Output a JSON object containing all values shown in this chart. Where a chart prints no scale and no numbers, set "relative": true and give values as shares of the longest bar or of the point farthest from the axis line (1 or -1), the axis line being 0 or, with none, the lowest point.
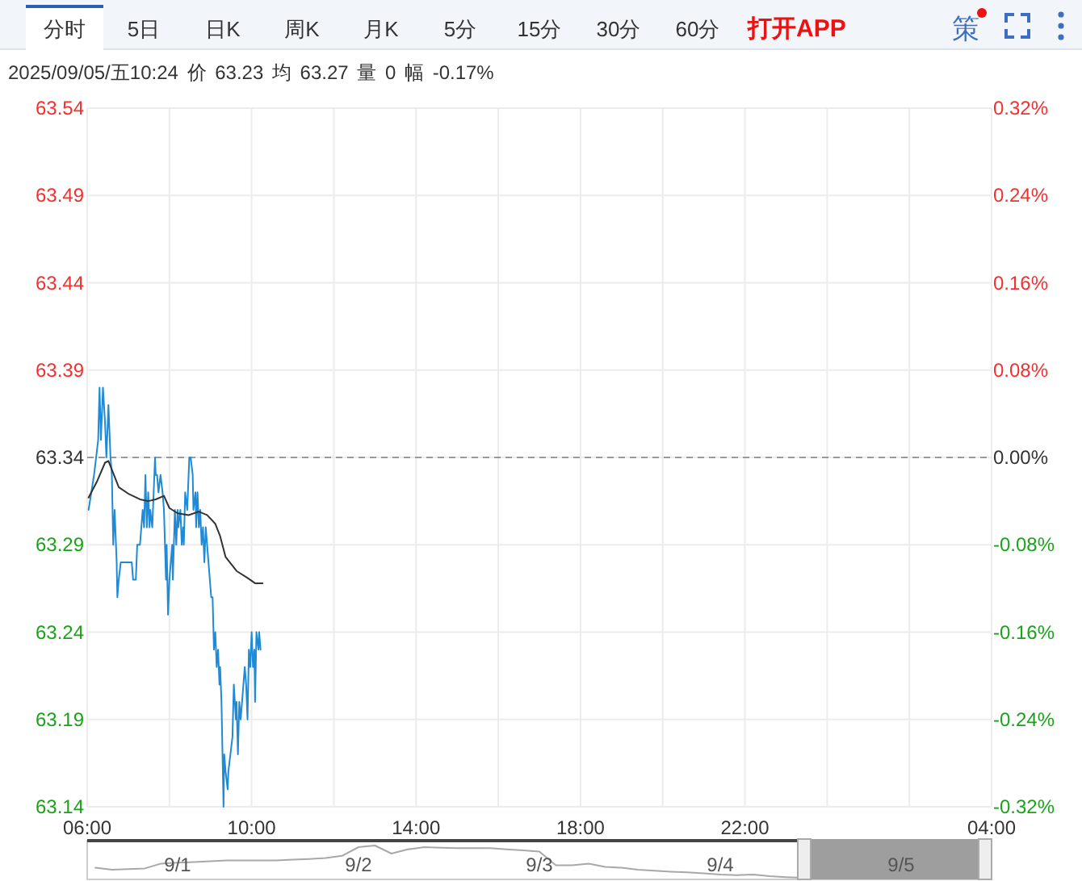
{
  "chart_data": [
    {
      "type": "line",
      "subtitle": "2025/09/05/五10:24 价 63.23 均 63.27 量 0 幅 -0.17%",
      "annotations": [
        "分时",
        "5日",
        "日K",
        "周K",
        "月K",
        "5分",
        "15分",
        "30分",
        "60分",
        "打开APP",
        "策"
      ],
      "series": [
        {
          "color": "#1f8ad6",
          "x": [
            "2025-09-05T06:02",
            "2025-09-05T06:06",
            "2025-09-05T06:10",
            "2025-09-05T06:13",
            "2025-09-05T06:16",
            "2025-09-05T06:18",
            "2025-09-05T06:20",
            "2025-09-05T06:23",
            "2025-09-05T06:26",
            "2025-09-05T06:28",
            "2025-09-05T06:31",
            "2025-09-05T06:34",
            "2025-09-05T06:36",
            "2025-09-05T06:38",
            "2025-09-05T06:40",
            "2025-09-05T06:43",
            "2025-09-05T06:44",
            "2025-09-05T06:46",
            "2025-09-05T06:49",
            "2025-09-05T07:05",
            "2025-09-05T07:07",
            "2025-09-05T07:11",
            "2025-09-05T07:13",
            "2025-09-05T07:17",
            "2025-09-05T07:19",
            "2025-09-05T07:21",
            "2025-09-05T07:23",
            "2025-09-05T07:25",
            "2025-09-05T07:27",
            "2025-09-05T07:29",
            "2025-09-05T07:31",
            "2025-09-05T07:32",
            "2025-09-05T07:35",
            "2025-09-05T07:37",
            "2025-09-05T07:39",
            "2025-09-05T07:40",
            "2025-09-05T07:42",
            "2025-09-05T07:44",
            "2025-09-05T07:47",
            "2025-09-05T07:50",
            "2025-09-05T07:52",
            "2025-09-05T07:55",
            "2025-09-05T07:56",
            "2025-09-05T07:58",
            "2025-09-05T08:00",
            "2025-09-05T08:02",
            "2025-09-05T08:04",
            "2025-09-05T08:05",
            "2025-09-05T08:08",
            "2025-09-05T08:10",
            "2025-09-05T08:12",
            "2025-09-05T08:13",
            "2025-09-05T08:16",
            "2025-09-05T08:18",
            "2025-09-05T08:20",
            "2025-09-05T08:21",
            "2025-09-05T08:23",
            "2025-09-05T08:26",
            "2025-09-05T08:28",
            "2025-09-05T08:29",
            "2025-09-05T08:31",
            "2025-09-05T08:34",
            "2025-09-05T08:35",
            "2025-09-05T08:38",
            "2025-09-05T08:39",
            "2025-09-05T08:41",
            "2025-09-05T08:43",
            "2025-09-05T08:45",
            "2025-09-05T08:47",
            "2025-09-05T08:49",
            "2025-09-05T08:51",
            "2025-09-05T08:53",
            "2025-09-05T08:55",
            "2025-09-05T08:57",
            "2025-09-05T08:59",
            "2025-09-05T09:01",
            "2025-09-05T09:03",
            "2025-09-05T09:05",
            "2025-09-05T09:07",
            "2025-09-05T09:09",
            "2025-09-05T09:11",
            "2025-09-05T09:13",
            "2025-09-05T09:14",
            "2025-09-05T09:16",
            "2025-09-05T09:19",
            "2025-09-05T09:20",
            "2025-09-05T09:22",
            "2025-09-05T09:25",
            "2025-09-05T09:26",
            "2025-09-05T09:29",
            "2025-09-05T09:32",
            "2025-09-05T09:34",
            "2025-09-05T09:37",
            "2025-09-05T09:38",
            "2025-09-05T09:40",
            "2025-09-05T09:42",
            "2025-09-05T09:44",
            "2025-09-05T09:46",
            "2025-09-05T09:48",
            "2025-09-05T09:50",
            "2025-09-05T09:52",
            "2025-09-05T09:54",
            "2025-09-05T09:56",
            "2025-09-05T09:58",
            "2025-09-05T10:00",
            "2025-09-05T10:02",
            "2025-09-05T10:04",
            "2025-09-05T10:05",
            "2025-09-05T10:07",
            "2025-09-05T10:10",
            "2025-09-05T10:11",
            "2025-09-05T10:13"
          ],
          "values": [
            63.31,
            63.32,
            63.33,
            63.34,
            63.35,
            63.38,
            63.35,
            63.38,
            63.36,
            63.34,
            63.37,
            63.34,
            63.33,
            63.29,
            63.31,
            63.28,
            63.26,
            63.27,
            63.28,
            63.28,
            63.27,
            63.27,
            63.29,
            63.29,
            63.3,
            63.31,
            63.3,
            63.33,
            63.3,
            63.32,
            63.3,
            63.31,
            63.3,
            63.32,
            63.34,
            63.33,
            63.33,
            63.32,
            63.33,
            63.32,
            63.31,
            63.27,
            63.29,
            63.25,
            63.27,
            63.28,
            63.29,
            63.27,
            63.31,
            63.29,
            63.31,
            63.3,
            63.31,
            63.29,
            63.3,
            63.29,
            63.32,
            63.31,
            63.33,
            63.34,
            63.34,
            63.33,
            63.31,
            63.32,
            63.3,
            63.32,
            63.3,
            63.31,
            63.29,
            63.3,
            63.28,
            63.3,
            63.29,
            63.28,
            63.27,
            63.26,
            63.26,
            63.23,
            63.24,
            63.22,
            63.23,
            63.21,
            63.22,
            63.2,
            63.14,
            63.17,
            63.16,
            63.15,
            63.16,
            63.17,
            63.18,
            63.21,
            63.19,
            63.2,
            63.17,
            63.2,
            63.19,
            63.2,
            63.21,
            63.22,
            63.21,
            63.19,
            63.23,
            63.22,
            63.24,
            63.22,
            63.23,
            63.2,
            63.24,
            63.23,
            63.24,
            63.23
          ]
        },
        {
          "color": "#333333",
          "x": [
            "2025-09-05T06:02",
            "2025-09-05T06:14",
            "2025-09-05T06:26",
            "2025-09-05T06:31",
            "2025-09-05T06:38",
            "2025-09-05T06:46",
            "2025-09-05T07:01",
            "2025-09-05T07:17",
            "2025-09-05T07:29",
            "2025-09-05T07:40",
            "2025-09-05T07:52",
            "2025-09-05T08:00",
            "2025-09-05T08:12",
            "2025-09-05T08:28",
            "2025-09-05T08:43",
            "2025-09-05T08:55",
            "2025-09-05T09:07",
            "2025-09-05T09:14",
            "2025-09-05T09:22",
            "2025-09-05T09:38",
            "2025-09-05T09:54",
            "2025-09-05T10:05",
            "2025-09-05T10:16"
          ],
          "values": [
            63.317,
            63.326,
            63.337,
            63.338,
            63.331,
            63.323,
            63.319,
            63.316,
            63.315,
            63.316,
            63.318,
            63.311,
            63.308,
            63.307,
            63.309,
            63.307,
            63.302,
            63.295,
            63.283,
            63.275,
            63.271,
            63.268,
            63.268
          ]
        }
      ],
      "xlim": [
        "2025-09-05T06:00",
        "2025-09-06T04:00"
      ],
      "xticks": [
        {
          "value": "2025-09-05T06:00",
          "label": "06:00"
        },
        {
          "value": "2025-09-05T08:00",
          "label": null
        },
        {
          "value": "2025-09-05T10:00",
          "label": "10:00"
        },
        {
          "value": "2025-09-05T12:00",
          "label": null
        },
        {
          "value": "2025-09-05T14:00",
          "label": "14:00"
        },
        {
          "value": "2025-09-05T16:00",
          "label": null
        },
        {
          "value": "2025-09-05T18:00",
          "label": "18:00"
        },
        {
          "value": "2025-09-05T20:00",
          "label": null
        },
        {
          "value": "2025-09-05T22:00",
          "label": "22:00"
        },
        {
          "value": "2025-09-06T00:00",
          "label": null
        },
        {
          "value": "2025-09-06T02:00",
          "label": null
        },
        {
          "value": "2025-09-06T04:00",
          "label": "04:00"
        }
      ],
      "ylim": [
        63.14,
        63.54
      ],
      "yticks": [
        63.14,
        63.19,
        63.24,
        63.29,
        63.34,
        63.39,
        63.44,
        63.49,
        63.54
      ],
      "y2lim": [
        -0.32,
        0.32
      ],
      "y2ticks": [
        {
          "value": -0.32,
          "label": "-0.32%"
        },
        {
          "value": -0.24,
          "label": "-0.24%"
        },
        {
          "value": -0.16,
          "label": "-0.16%"
        },
        {
          "value": -0.08,
          "label": "-0.08%"
        },
        {
          "value": 0,
          "label": "0.00%"
        },
        {
          "value": 0.08,
          "label": "0.08%"
        },
        {
          "value": 0.16,
          "label": "0.16%"
        },
        {
          "value": 0.24,
          "label": "0.24%"
        },
        {
          "value": 0.32,
          "label": "0.32%"
        }
      ],
      "ref_lines": [
        {
          "axis": "y",
          "value": 63.34,
          "line_style": "dashed",
          "color": "#999999"
        }
      ],
      "grid": true
    },
    {
      "type": "line",
      "relative": true,
      "categories": [
        null,
        null,
        null,
        null,
        null,
        "9/1",
        null,
        null,
        null,
        null,
        null,
        null,
        null,
        null,
        null,
        null,
        "9/2",
        null,
        null,
        null,
        null,
        null,
        null,
        null,
        null,
        null,
        null,
        "9/3",
        null,
        null,
        null,
        null,
        null,
        null,
        null,
        null,
        null,
        null,
        "9/4",
        null,
        null,
        null,
        null,
        null,
        null,
        null,
        null,
        null,
        null,
        "9/5",
        null,
        null,
        null,
        null,
        null
      ],
      "series": [
        {
          "color": "#a8a8a8",
          "values": [
            0.31,
            0.25,
            0.27,
            0.29,
            0.44,
            0.47,
            0.49,
            0.51,
            0.54,
            0.54,
            0.54,
            0.54,
            0.56,
            0.58,
            0.61,
            0.68,
            0.95,
            1.0,
            0.75,
            0.88,
            0.95,
            0.93,
            0.92,
            0.92,
            0.92,
            0.88,
            0.85,
            0.81,
            0.39,
            0.39,
            0.44,
            0.34,
            0.31,
            0.25,
            0.22,
            0.19,
            0.17,
            0.14,
            0.1,
            0.08,
            0.1,
            0.05,
            0.02,
            0.0,
            null,
            null,
            null,
            null,
            null,
            null,
            null,
            null,
            null,
            null,
            null
          ]
        }
      ]
    }
  ]
}
